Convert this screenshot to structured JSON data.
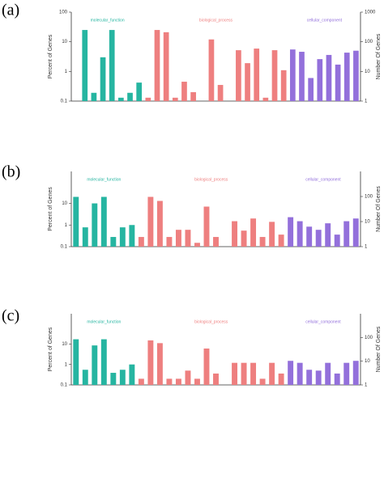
{
  "chart_data": [
    {
      "type": "bar",
      "panel": "(a)",
      "ylabel": "Percent of Genes",
      "y2label": "Number Of Genes",
      "log": true,
      "ylim": [
        0.1,
        100
      ],
      "yticks": [
        0.1,
        1,
        10,
        100
      ],
      "y2lim": [
        1,
        1000
      ],
      "y2ticks": [
        1,
        10,
        100,
        1000
      ],
      "categories": [
        null,
        null,
        null,
        null,
        null,
        null,
        null,
        null,
        null,
        null,
        null,
        null,
        null,
        null,
        null,
        null,
        null,
        null,
        null,
        null,
        null,
        null,
        null,
        null,
        null,
        null,
        null,
        null,
        null,
        null,
        null,
        null
      ],
      "series": [
        {
          "name": "molecular_function",
          "color": "#26b5a1",
          "values": [
            0.1,
            25,
            0.19,
            3,
            25,
            0.13,
            0.19,
            0.42,
            null,
            null,
            null,
            null,
            null,
            null,
            null,
            null,
            null,
            null,
            null,
            null,
            null,
            null,
            null,
            null,
            null,
            null,
            null,
            null,
            null,
            null,
            null,
            null
          ]
        },
        {
          "name": "biological_process",
          "color": "#ee7f7f",
          "values": [
            null,
            null,
            null,
            null,
            null,
            null,
            null,
            null,
            0.13,
            25,
            21,
            0.13,
            0.45,
            0.2,
            0.1,
            12,
            0.35,
            0.1,
            5.2,
            1.9,
            5.9,
            0.13,
            5.2,
            1.1,
            null,
            null,
            null,
            null,
            null,
            null,
            null,
            null
          ]
        },
        {
          "name": "cellular_component",
          "color": "#9370db",
          "values": [
            null,
            null,
            null,
            null,
            null,
            null,
            null,
            null,
            null,
            null,
            null,
            null,
            null,
            null,
            null,
            null,
            null,
            null,
            null,
            null,
            null,
            null,
            null,
            null,
            5.5,
            4.6,
            0.6,
            2.6,
            3.6,
            1.7,
            4.3,
            5
          ]
        }
      ]
    },
    {
      "type": "bar",
      "panel": "(b)",
      "ylabel": "Percent of Genes",
      "y2label": "Number Of Genes",
      "log": true,
      "ylim": [
        0.1,
        300
      ],
      "yticks": [
        0.1,
        1,
        10
      ],
      "y2lim": [
        1,
        1000
      ],
      "y2ticks": [
        1,
        10,
        100
      ],
      "categories": [
        null,
        null,
        null,
        null,
        null,
        null,
        null,
        null,
        null,
        null,
        null,
        null,
        null,
        null,
        null,
        null,
        null,
        null,
        null,
        null,
        null,
        null,
        null,
        null,
        null,
        null,
        null,
        null,
        null,
        null,
        null
      ],
      "series": [
        {
          "name": "molecular_function",
          "color": "#26b5a1",
          "values": [
            20,
            0.78,
            10,
            20,
            0.28,
            0.78,
            1,
            null,
            null,
            null,
            null,
            null,
            null,
            null,
            null,
            null,
            null,
            null,
            null,
            null,
            null,
            null,
            null,
            null,
            null,
            null,
            null,
            null,
            null,
            null,
            null
          ]
        },
        {
          "name": "biological_process",
          "color": "#ee7f7f",
          "values": [
            null,
            null,
            null,
            null,
            null,
            null,
            null,
            0.28,
            20,
            13,
            0.28,
            0.6,
            0.6,
            0.15,
            7.1,
            0.28,
            0.1,
            1.5,
            0.55,
            2,
            0.28,
            1.4,
            0.36,
            null,
            null,
            null,
            null,
            null,
            null,
            null,
            null
          ]
        },
        {
          "name": "cellular_component",
          "color": "#9370db",
          "values": [
            null,
            null,
            null,
            null,
            null,
            null,
            null,
            null,
            null,
            null,
            null,
            null,
            null,
            null,
            null,
            null,
            null,
            null,
            null,
            null,
            null,
            null,
            null,
            2.3,
            1.5,
            0.84,
            0.6,
            1.2,
            0.36,
            1.5,
            2
          ]
        }
      ]
    },
    {
      "type": "bar",
      "panel": "(c)",
      "ylabel": "Percent of Genes",
      "y2label": "Number Of Genes",
      "log": true,
      "ylim": [
        0.1,
        300
      ],
      "yticks": [
        0.1,
        1,
        10
      ],
      "y2lim": [
        1,
        1000
      ],
      "y2ticks": [
        1,
        10,
        100
      ],
      "categories": [
        null,
        null,
        null,
        null,
        null,
        null,
        null,
        null,
        null,
        null,
        null,
        null,
        null,
        null,
        null,
        null,
        null,
        null,
        null,
        null,
        null,
        null,
        null,
        null,
        null,
        null,
        null,
        null,
        null,
        null,
        null
      ],
      "series": [
        {
          "name": "molecular_function",
          "color": "#26b5a1",
          "values": [
            17,
            0.55,
            8.5,
            17,
            0.39,
            0.55,
            1,
            null,
            null,
            null,
            null,
            null,
            null,
            null,
            null,
            null,
            null,
            null,
            null,
            null,
            null,
            null,
            null,
            null,
            null,
            null,
            null,
            null,
            null,
            null,
            null
          ]
        },
        {
          "name": "biological_process",
          "color": "#ee7f7f",
          "values": [
            null,
            null,
            null,
            null,
            null,
            null,
            null,
            0.2,
            15,
            11,
            0.2,
            0.2,
            0.5,
            0.2,
            6,
            0.36,
            0.1,
            1.2,
            1.2,
            1.2,
            0.2,
            1.2,
            0.36,
            null,
            null,
            null,
            null,
            null,
            null,
            null,
            null
          ]
        },
        {
          "name": "cellular_component",
          "color": "#9370db",
          "values": [
            null,
            null,
            null,
            null,
            null,
            null,
            null,
            null,
            null,
            null,
            null,
            null,
            null,
            null,
            null,
            null,
            null,
            null,
            null,
            null,
            null,
            null,
            null,
            1.5,
            1.2,
            0.55,
            0.5,
            1.2,
            0.36,
            1.2,
            1.5
          ]
        }
      ]
    }
  ]
}
